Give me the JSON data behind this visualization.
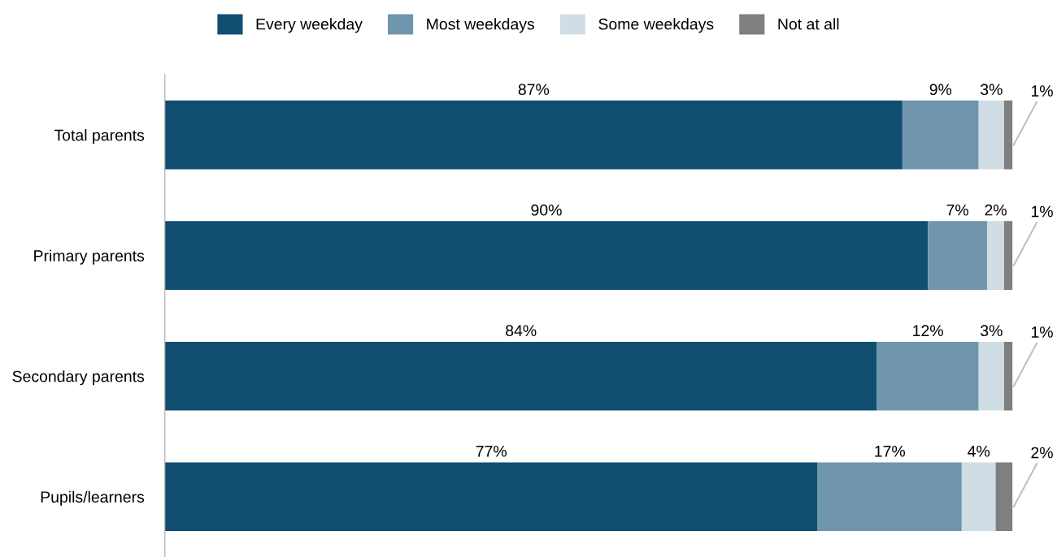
{
  "chart_data": {
    "type": "bar",
    "orientation": "horizontal",
    "stacked": true,
    "legend": "top",
    "grid": false,
    "categories": [
      "Total parents",
      "Primary parents",
      "Secondary parents",
      "Pupils/learners"
    ],
    "series": [
      {
        "name": "Every weekday",
        "color": "#114e72",
        "values": [
          87,
          90,
          84,
          77
        ],
        "value_labels": [
          "87%",
          "90%",
          "84%",
          "77%"
        ]
      },
      {
        "name": "Most weekdays",
        "color": "#7096ae",
        "values": [
          9,
          7,
          12,
          17
        ],
        "value_labels": [
          "9%",
          "7%",
          "12%",
          "17%"
        ]
      },
      {
        "name": "Some weekdays",
        "color": "#d0dde5",
        "values": [
          3,
          2,
          3,
          4
        ],
        "value_labels": [
          "3%",
          "2%",
          "3%",
          "4%"
        ]
      },
      {
        "name": "Not at all",
        "color": "#7f7f7f",
        "values": [
          1,
          1,
          1,
          2
        ],
        "value_labels": [
          "1%",
          "1%",
          "1%",
          "2%"
        ]
      }
    ]
  }
}
